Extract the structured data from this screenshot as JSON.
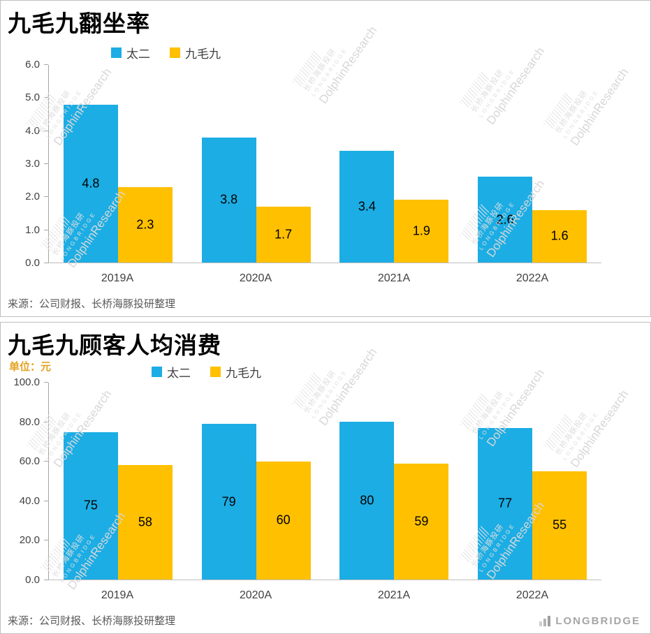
{
  "watermark": {
    "brand_cn": "长桥海豚投研",
    "brand_sub": "LONGBRIDGE",
    "brand_en": "DolphinResearch"
  },
  "footer": {
    "logo_text": "LONGBRIDGE"
  },
  "chart_data": [
    {
      "type": "bar",
      "title": "九毛九翻坐率",
      "unit_label": "",
      "categories": [
        "2019A",
        "2020A",
        "2021A",
        "2022A"
      ],
      "series": [
        {
          "name": "太二",
          "color": "#1CADE4",
          "values": [
            4.8,
            3.8,
            3.4,
            2.6
          ]
        },
        {
          "name": "九毛九",
          "color": "#FFC000",
          "values": [
            2.3,
            1.7,
            1.9,
            1.6
          ]
        }
      ],
      "ylim": [
        0,
        6
      ],
      "ytick_step": 1,
      "ytick_decimals": 1,
      "value_decimals": 1,
      "grid": false,
      "legend_position": "top",
      "source": "来源：公司财报、长桥海豚投研整理"
    },
    {
      "type": "bar",
      "title": "九毛九顾客人均消费",
      "unit_label": "单位：元",
      "categories": [
        "2019A",
        "2020A",
        "2021A",
        "2022A"
      ],
      "series": [
        {
          "name": "太二",
          "color": "#1CADE4",
          "values": [
            75,
            79,
            80,
            77
          ]
        },
        {
          "name": "九毛九",
          "color": "#FFC000",
          "values": [
            58,
            60,
            59,
            55
          ]
        }
      ],
      "ylim": [
        0,
        100
      ],
      "ytick_step": 20,
      "ytick_decimals": 1,
      "value_decimals": 0,
      "grid": false,
      "legend_position": "top",
      "source": "来源：公司财报、长桥海豚投研整理"
    }
  ]
}
